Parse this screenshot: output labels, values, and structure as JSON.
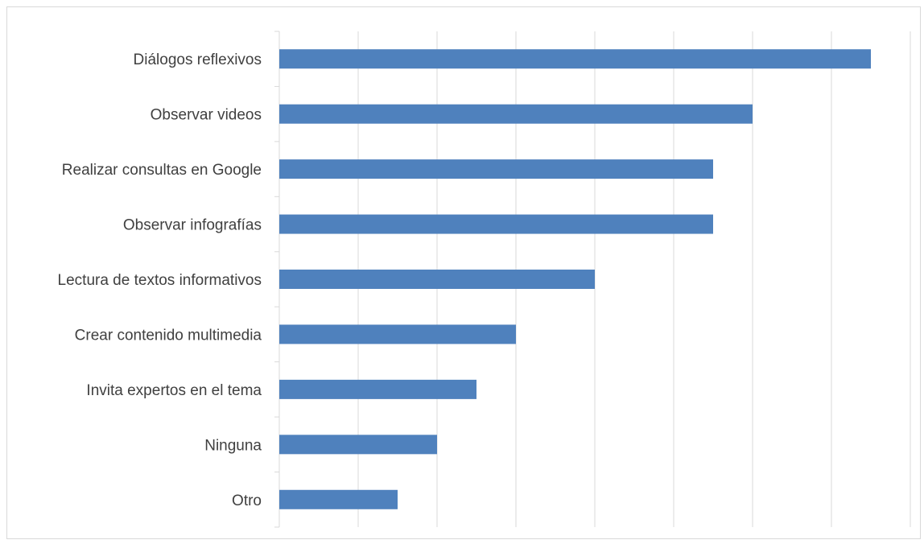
{
  "chart_data": {
    "type": "bar",
    "orientation": "horizontal",
    "title": "",
    "xlabel": "",
    "ylabel": "",
    "categories": [
      "Diálogos reflexivos",
      "Observar videos",
      "Realizar consultas en Google",
      "Observar infografías",
      "Lectura de textos informativos",
      "Crear contenido multimedia",
      "Invita expertos en el tema",
      "Ninguna",
      "Otro"
    ],
    "values": [
      15,
      12,
      11,
      11,
      8,
      6,
      5,
      4,
      3
    ],
    "xlim": [
      0,
      16
    ],
    "x_tick_step": 2,
    "tick_labels_visible": false,
    "grid": "vertical",
    "legend": "none",
    "colors": {
      "bar": "#4f81bd",
      "grid": "#d9d9d9",
      "axis": "#d9d9d9",
      "text": "#404040"
    }
  }
}
